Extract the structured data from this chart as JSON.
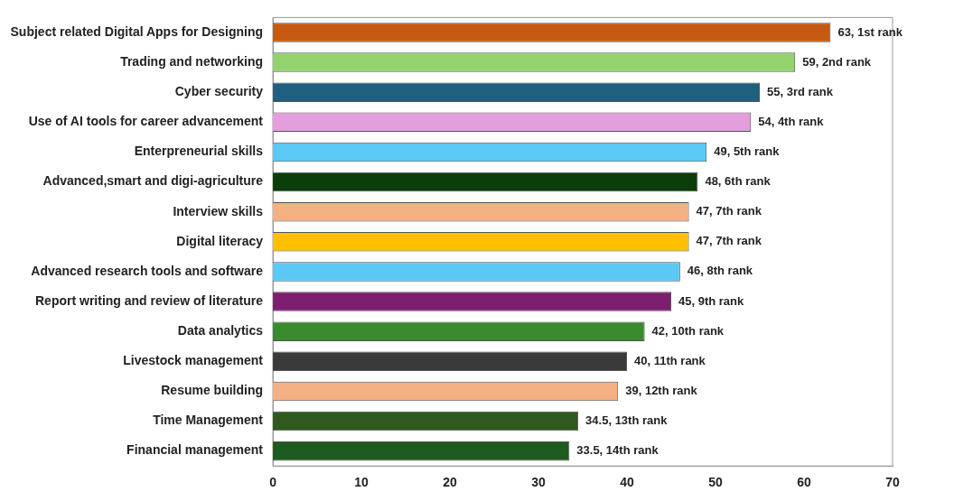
{
  "chart_data": {
    "type": "bar",
    "orientation": "horizontal",
    "categories": [
      "Subject related Digital Apps for Designing",
      "Trading and networking",
      "Cyber security",
      "Use of AI tools for career advancement",
      "Enterpreneurial skills",
      "Advanced,smart and digi-agriculture",
      "Interview skills",
      "Digital literacy",
      "Advanced research tools and software",
      "Report writing and review of literature",
      "Data analytics",
      "Livestock management",
      "Resume building",
      "Time Management",
      "Financial management"
    ],
    "values": [
      63,
      59,
      55,
      54,
      49,
      48,
      47,
      47,
      46,
      45,
      42,
      40,
      39,
      34.5,
      33.5
    ],
    "colors": [
      "#c55a11",
      "#92d36e",
      "#1f5f7f",
      "#e59edd",
      "#5bc8f5",
      "#0b3d0b",
      "#f4b183",
      "#ffc000",
      "#5bc8f5",
      "#7b1f6e",
      "#3a8a2e",
      "#3a3a3a",
      "#f4b183",
      "#2f5a1f",
      "#1e5b1e"
    ],
    "value_labels": [
      "63, 1st rank",
      "59, 2nd rank",
      "55, 3rd rank",
      "54, 4th rank",
      "49, 5th rank",
      "48, 6th rank",
      "47, 7th rank",
      "47, 7th rank",
      "46, 8th rank",
      "45, 9th rank",
      "42, 10th rank",
      "40, 11th rank",
      "39, 12th rank",
      "34.5, 13th rank",
      "33.5, 14th rank"
    ],
    "xlim": [
      0,
      70
    ],
    "xticks": [
      0,
      10,
      20,
      30,
      40,
      50,
      60,
      70
    ],
    "grid": false,
    "legend": false
  }
}
